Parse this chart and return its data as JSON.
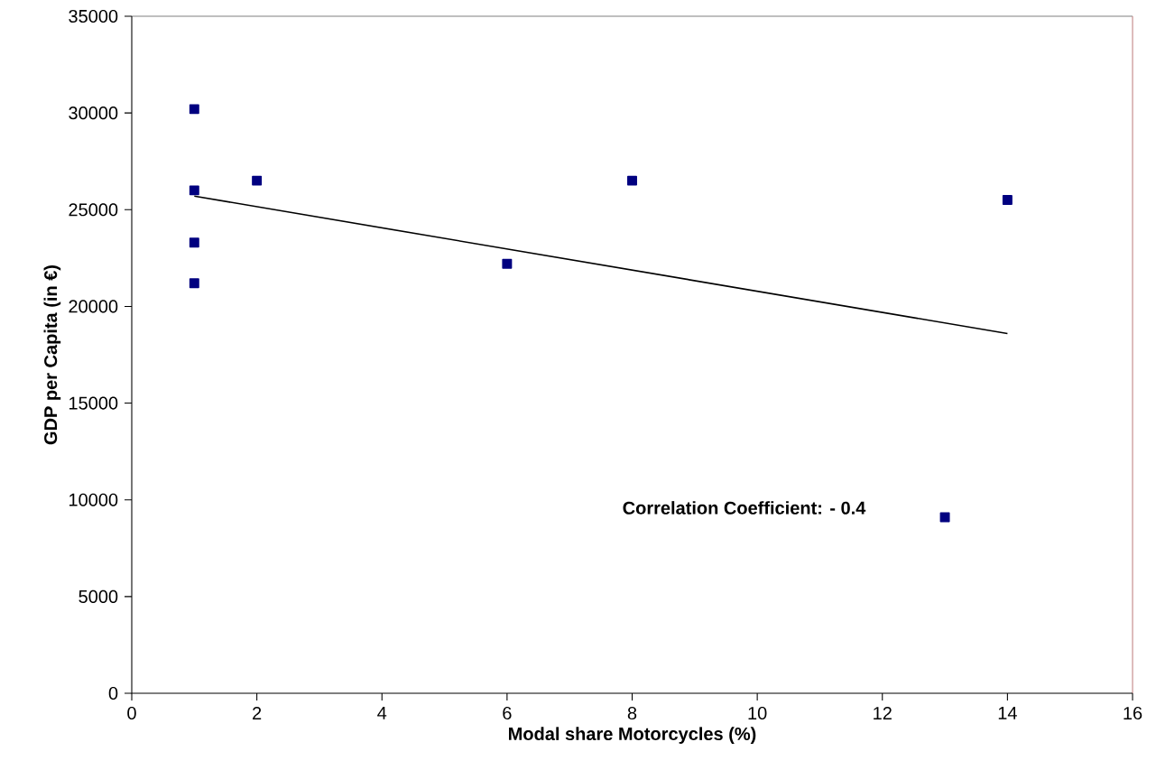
{
  "chart_data": {
    "type": "scatter",
    "xlabel": "Modal share Motorcycles (%)",
    "ylabel": "GDP per Capita (in €)",
    "xlim": [
      0,
      16
    ],
    "ylim": [
      0,
      35000
    ],
    "xticks": [
      0,
      2,
      4,
      6,
      8,
      10,
      12,
      14,
      16
    ],
    "yticks": [
      0,
      5000,
      10000,
      15000,
      20000,
      25000,
      30000,
      35000
    ],
    "series": [
      {
        "color": "#000080",
        "marker": "square",
        "x": [
          1,
          1,
          1,
          1,
          2,
          6,
          8,
          14,
          13
        ],
        "values": [
          30200,
          26000,
          23300,
          21200,
          26500,
          22200,
          26500,
          25500,
          9100
        ]
      },
      {
        "type": "line",
        "color": "#000000",
        "marker": "none",
        "x": [
          1,
          14
        ],
        "values": [
          25700,
          18600
        ]
      }
    ],
    "annotations": [
      "Correlation Coefficient: - 0.4"
    ]
  }
}
